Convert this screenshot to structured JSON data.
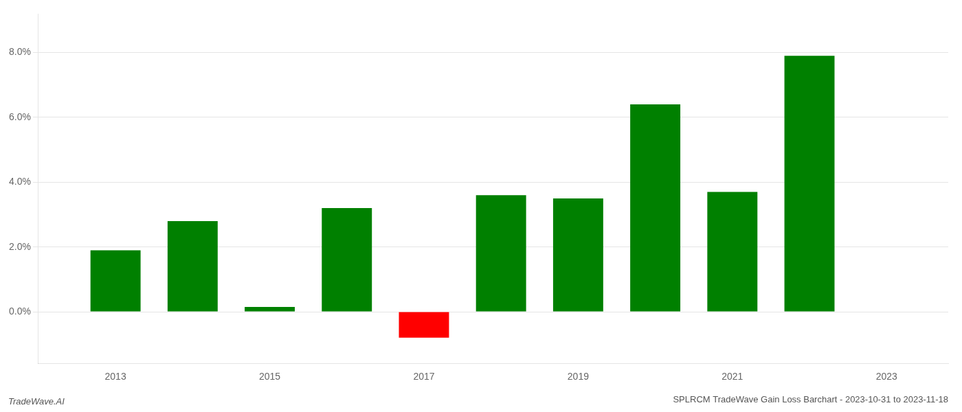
{
  "chart_data": {
    "type": "bar",
    "title": "SPLRCM TradeWave Gain Loss Barchart - 2023-10-31 to 2023-11-18",
    "annotations": [
      "TradeWave.AI"
    ],
    "x": [
      2013,
      2014,
      2015,
      2016,
      2017,
      2018,
      2019,
      2020,
      2021,
      2022
    ],
    "values": [
      0.019,
      0.028,
      0.0015,
      0.032,
      -0.008,
      0.036,
      0.035,
      0.064,
      0.037,
      0.079
    ],
    "colors": [
      "#008000",
      "#008000",
      "#008000",
      "#008000",
      "#ff0000",
      "#008000",
      "#008000",
      "#008000",
      "#008000",
      "#008000"
    ],
    "xlim": [
      2012.0,
      2023.8
    ],
    "xticks": [
      2013,
      2015,
      2017,
      2019,
      2021,
      2023
    ],
    "ylim": [
      -0.016,
      0.092
    ],
    "yticks": [
      {
        "value": 0.0,
        "label": "0.0%"
      },
      {
        "value": 0.02,
        "label": "2.0%"
      },
      {
        "value": 0.04,
        "label": "4.0%"
      },
      {
        "value": 0.06,
        "label": "6.0%"
      },
      {
        "value": 0.08,
        "label": "8.0%"
      }
    ],
    "grid": "y"
  }
}
